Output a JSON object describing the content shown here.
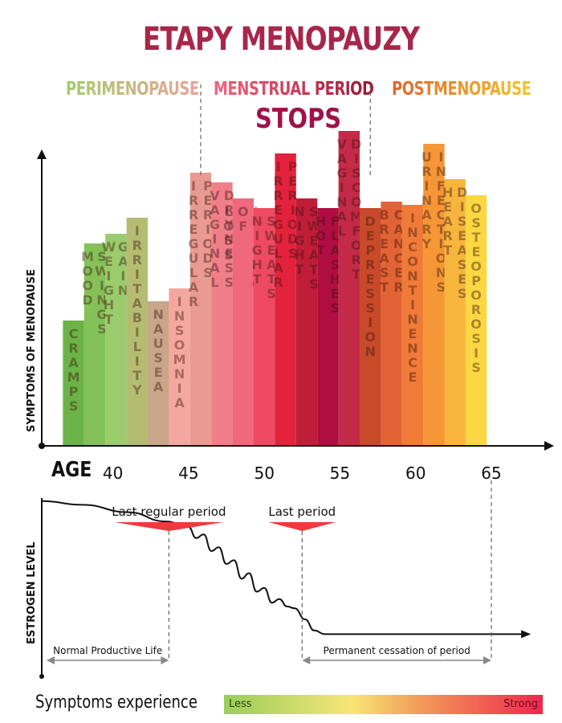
{
  "header": {
    "title": "ETAPY MENOPAUZY",
    "stops": "STOPS"
  },
  "stages": [
    {
      "text": "PERIMENOPAUSE",
      "color_from": "#a3cc6a",
      "color_to": "#e8a59a"
    },
    {
      "text": "MENSTRUAL PERIOD",
      "color_from": "#f2607a",
      "color_to": "#9e1a3a"
    },
    {
      "text": "POSTMENOPAUSE",
      "color_from": "#e06a30",
      "color_to": "#f4c42e"
    }
  ],
  "labels": {
    "symptoms_axis": "SYMPTOMS OF MENOPAUSE",
    "estrogen_axis": "ESTROGEN LEVEL",
    "age": "AGE",
    "last_regular_period": "Last regular period",
    "last_period": "Last period",
    "normal_life": "Normal Productive Life",
    "permanent_cessation": "Permanent cessation of period"
  },
  "legend": {
    "title": "Symptoms experience",
    "less": "Less",
    "strong": "Strong"
  },
  "chart_data": {
    "type": "bar",
    "x_unit": "age",
    "xlim": [
      35.3,
      65
    ],
    "x_ticks": [
      40,
      45,
      50,
      55,
      60,
      65
    ],
    "bar_width_years": 1.4,
    "categories": [
      "CRAMPS",
      "MOOD SWINGS",
      "WEIGHT GAIN",
      "IRRITABILITY",
      "NAUSEA",
      "INSOMNIA",
      "IRREGULAR PERIODS",
      "VAGINAL DRYNESS",
      "LOSS OF LIBIDO",
      "NIGHT SWEATS",
      "IRREGULAR PERIODS",
      "NIGHT SWEATS",
      "HOT FLASHES",
      "VAGINAL DISCOMFORT",
      "DEPRESSION",
      "BREAST CANCER",
      "INCONTINENCE",
      "URINARY INFECTIONS",
      "HEART DISEASES",
      "OSTEOPOROSIS"
    ],
    "x": [
      37.4,
      38.8,
      40.2,
      41.6,
      43.0,
      44.4,
      45.8,
      47.2,
      48.6,
      50.0,
      51.4,
      52.8,
      54.2,
      55.6,
      57.0,
      58.4,
      59.8,
      61.2,
      62.6,
      64.0
    ],
    "values": [
      39,
      63,
      66,
      71,
      45,
      49,
      85,
      82,
      77,
      74,
      91,
      77,
      74,
      98,
      74,
      76,
      75,
      94,
      83,
      78
    ],
    "ylim": [
      0,
      100
    ],
    "colors": [
      "#6bb347",
      "#85c159",
      "#9acb6c",
      "#b4bc72",
      "#c9a58a",
      "#f4a7a0",
      "#e99a93",
      "#f07f8a",
      "#f0687c",
      "#ee4a64",
      "#e3223c",
      "#c01d39",
      "#b00d43",
      "#c52a48",
      "#c84a2a",
      "#e26335",
      "#f07a38",
      "#f59637",
      "#f7b53e",
      "#fbd843"
    ],
    "estrogen": {
      "x": [
        35.3,
        38,
        41,
        43.5,
        45.0,
        45.5,
        46.0,
        46.5,
        47.0,
        47.5,
        48.0,
        48.5,
        49.0,
        49.5,
        50.0,
        50.5,
        51.0,
        51.5,
        52.0,
        52.7,
        53.3,
        54,
        58,
        62,
        65,
        67.5
      ],
      "y": [
        94,
        92,
        88,
        83,
        80,
        74,
        76,
        67,
        69,
        60,
        62,
        52,
        55,
        45,
        47,
        39,
        41,
        37,
        36,
        30,
        24,
        22,
        22,
        22,
        22,
        22
      ],
      "ylim": [
        0,
        100
      ]
    },
    "markers": [
      {
        "label": "Last regular period",
        "age": 43.7
      },
      {
        "label": "Last period",
        "age": 52.5
      }
    ]
  }
}
